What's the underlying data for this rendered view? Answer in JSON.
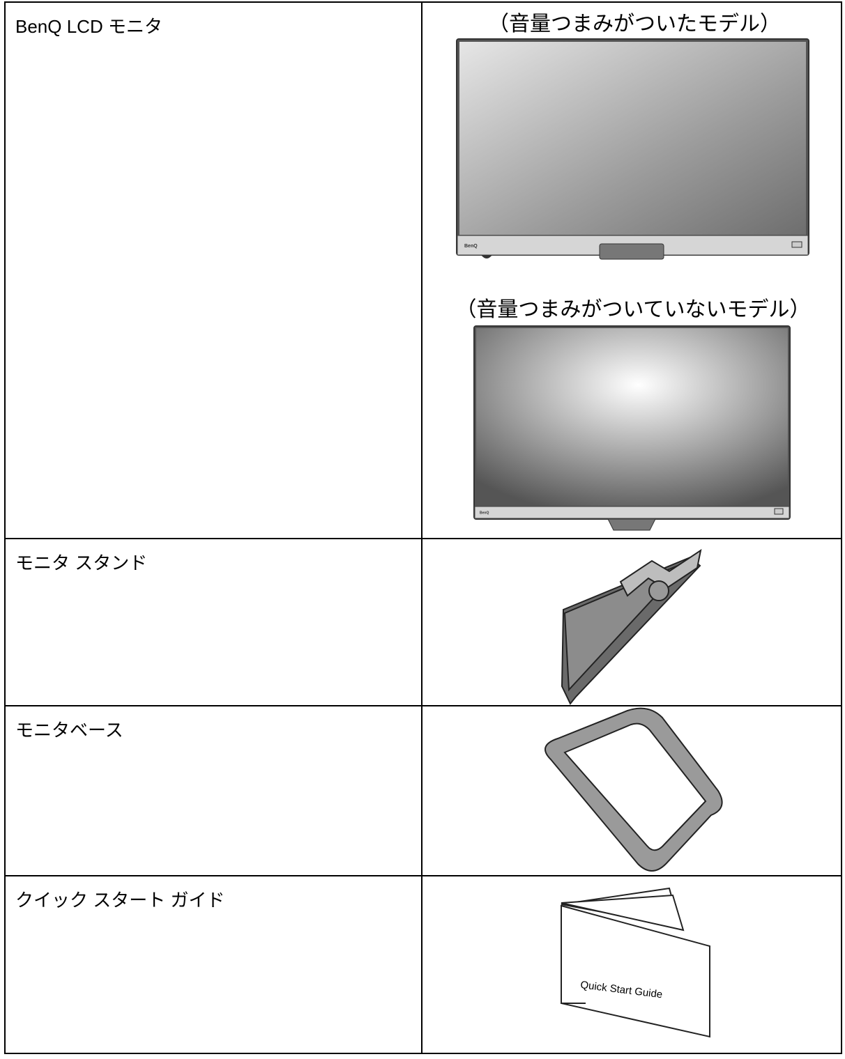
{
  "table": {
    "rows": [
      {
        "item": "BenQ LCD モニタ",
        "images": [
          {
            "caption": "（音量つまみがついたモデル）",
            "logo": "BenQ"
          },
          {
            "caption": "（音量つまみがついていないモデル）",
            "logo": "BenQ"
          }
        ]
      },
      {
        "item": "モニタ スタンド"
      },
      {
        "item": "モニタベース"
      },
      {
        "item": "クイック スタート ガイド",
        "image_text": "Quick Start Guide"
      }
    ]
  }
}
